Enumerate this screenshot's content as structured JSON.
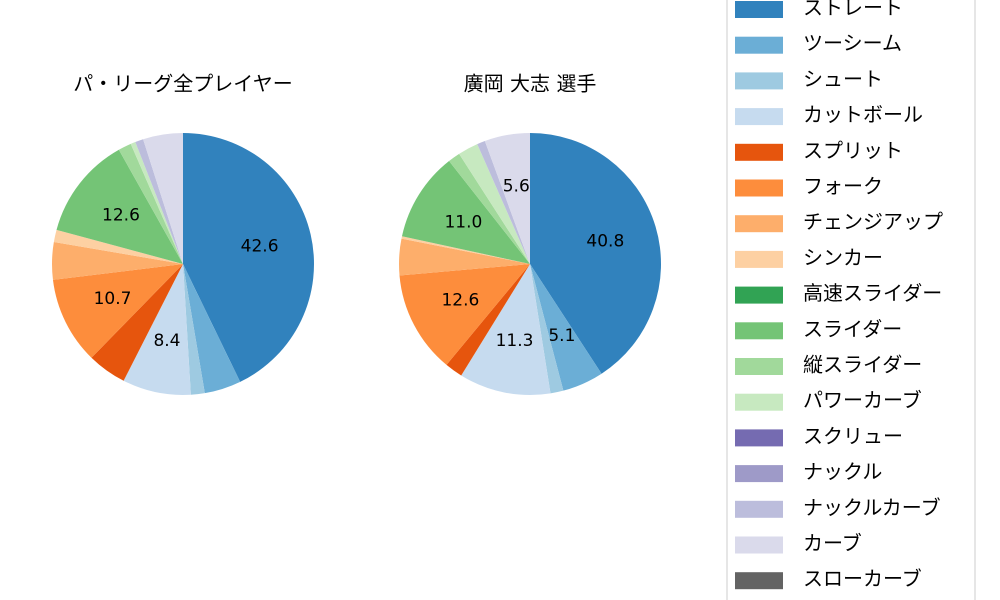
{
  "chart_data": [
    {
      "type": "pie",
      "title": "パ・リーグ全プレイヤー",
      "categories": [
        "ストレート",
        "ツーシーム",
        "シュート",
        "カットボール",
        "スプリット",
        "フォーク",
        "チェンジアップ",
        "シンカー",
        "高速スライダー",
        "スライダー",
        "縦スライダー",
        "パワーカーブ",
        "スクリュー",
        "ナックル",
        "ナックルカーブ",
        "カーブ",
        "スローカーブ"
      ],
      "colors": [
        "#3182bd",
        "#6baed6",
        "#9ecae1",
        "#c6dbef",
        "#e6550d",
        "#fd8d3c",
        "#fdae6b",
        "#fdd0a2",
        "#31a354",
        "#74c476",
        "#a1d99b",
        "#c7e9c0",
        "#756bb1",
        "#9e9ac8",
        "#bcbddc",
        "#dadaeb",
        "#636363"
      ],
      "values": [
        42.6,
        4.5,
        1.7,
        8.4,
        4.8,
        10.7,
        4.6,
        1.5,
        0,
        12.6,
        1.6,
        0.6,
        0,
        0,
        1.0,
        4.9,
        0
      ],
      "value_labels": [
        "42.6",
        null,
        null,
        "8.4",
        null,
        "10.7",
        null,
        null,
        null,
        "12.6",
        null,
        null,
        null,
        null,
        null,
        null,
        null
      ]
    },
    {
      "type": "pie",
      "title": "廣岡 大志  選手",
      "categories": [
        "ストレート",
        "ツーシーム",
        "シュート",
        "カットボール",
        "スプリット",
        "フォーク",
        "チェンジアップ",
        "シンカー",
        "高速スライダー",
        "スライダー",
        "縦スライダー",
        "パワーカーブ",
        "スクリュー",
        "ナックル",
        "ナックルカーブ",
        "カーブ",
        "スローカーブ"
      ],
      "colors": [
        "#3182bd",
        "#6baed6",
        "#9ecae1",
        "#c6dbef",
        "#e6550d",
        "#fd8d3c",
        "#fdae6b",
        "#fdd0a2",
        "#31a354",
        "#74c476",
        "#a1d99b",
        "#c7e9c0",
        "#756bb1",
        "#9e9ac8",
        "#bcbddc",
        "#dadaeb",
        "#636363"
      ],
      "values": [
        40.8,
        5.1,
        1.6,
        11.3,
        2.2,
        12.6,
        4.5,
        0.3,
        0,
        11.0,
        1.5,
        2.5,
        0,
        0,
        1.0,
        5.6,
        0
      ],
      "value_labels": [
        "40.8",
        "5.1",
        null,
        "11.3",
        null,
        "12.6",
        null,
        null,
        null,
        "11.0",
        null,
        null,
        null,
        null,
        null,
        "5.6",
        null
      ]
    }
  ]
}
